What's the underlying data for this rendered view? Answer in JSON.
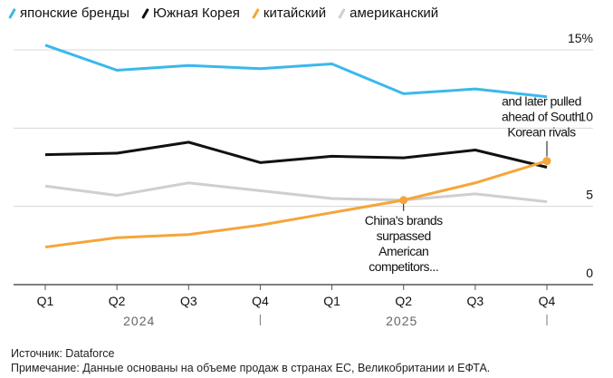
{
  "chart_data": {
    "type": "line",
    "categories": [
      "Q1",
      "Q2",
      "Q3",
      "Q4",
      "Q1",
      "Q2",
      "Q3",
      "Q4"
    ],
    "year_labels": [
      "2024",
      "2025"
    ],
    "series": [
      {
        "name": "японские бренды",
        "color": "#3bb8ec",
        "values": [
          15.3,
          13.7,
          14.0,
          13.8,
          14.1,
          12.2,
          12.5,
          12.0
        ]
      },
      {
        "name": "Южная Корея",
        "color": "#111111",
        "values": [
          8.3,
          8.4,
          9.1,
          7.8,
          8.2,
          8.1,
          8.6,
          7.5
        ]
      },
      {
        "name": "китайский",
        "color": "#f5a53a",
        "values": [
          2.4,
          3.0,
          3.2,
          3.8,
          4.6,
          5.4,
          6.5,
          7.9
        ]
      },
      {
        "name": "американский",
        "color": "#cfcfcf",
        "values": [
          6.3,
          5.7,
          6.5,
          6.0,
          5.5,
          5.4,
          5.8,
          5.3
        ]
      }
    ],
    "yticks": [
      {
        "value": 15,
        "label": "15%"
      },
      {
        "value": 10,
        "label": "10"
      },
      {
        "value": 5,
        "label": "5"
      },
      {
        "value": 0,
        "label": "0"
      }
    ],
    "ylim": [
      0,
      15
    ],
    "grid": true,
    "legend_position": "top-left",
    "annotations": [
      {
        "series": 2,
        "index": 5,
        "lines": [
          "China's brands",
          "surpassed",
          "American",
          "competitors..."
        ]
      },
      {
        "series": 2,
        "index": 7,
        "lines": [
          "and later pulled",
          "ahead of South",
          "Korean rivals"
        ]
      }
    ]
  },
  "footer": {
    "source": "Источник: Dataforce",
    "note": "Примечание: Данные основаны на объеме продаж в странах ЕС, Великобритании и ЕФТА."
  }
}
